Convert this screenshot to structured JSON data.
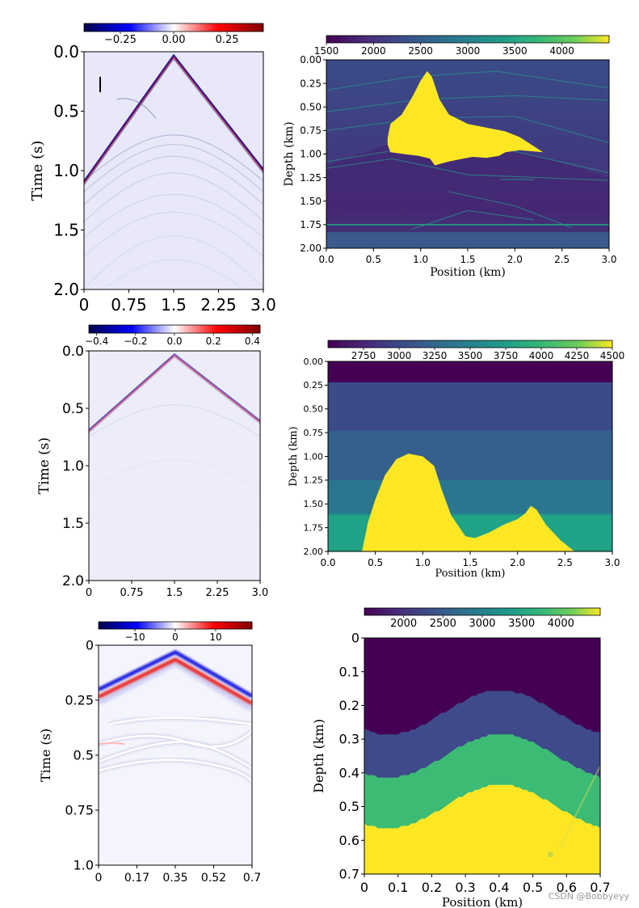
{
  "watermark": "CSDN @Bobbyeyy",
  "colors": {
    "background": "#ffffff",
    "axis": "#000000"
  },
  "chart_data": [
    {
      "id": "p1",
      "type": "heatmap",
      "kind": "seismic",
      "ylabel": "Time (s)",
      "xlabel": "",
      "xticks": [
        "0",
        "0.75",
        "1.5",
        "2.25",
        "3.0"
      ],
      "yticks": [
        "0.0",
        "0.5",
        "1.0",
        "1.5",
        "2.0"
      ],
      "xlim": [
        0,
        3.0
      ],
      "ylim": [
        2.0,
        0.0
      ],
      "apex_x": 1.5,
      "apex_t": 0.04,
      "cbar": {
        "min": -0.42,
        "max": 0.42,
        "ticks": [
          {
            "label": "−0.25",
            "v": -0.25
          },
          {
            "label": "0.00",
            "v": 0.0
          },
          {
            "label": "0.25",
            "v": 0.25
          }
        ]
      }
    },
    {
      "id": "p2",
      "type": "heatmap",
      "kind": "velocity",
      "ylabel": "Depth (km)",
      "xlabel": "Position (km)",
      "xticks": [
        "0.0",
        "0.5",
        "1.0",
        "1.5",
        "2.0",
        "2.5",
        "3.0"
      ],
      "yticks": [
        "0.00",
        "0.25",
        "0.50",
        "0.75",
        "1.00",
        "1.25",
        "1.50",
        "1.75",
        "2.00"
      ],
      "xlim": [
        0,
        3.0
      ],
      "ylim": [
        2.0,
        0.0
      ],
      "cbar": {
        "min": 1500,
        "max": 4500,
        "ticks": [
          {
            "label": "1500",
            "v": 1500
          },
          {
            "label": "2000",
            "v": 2000
          },
          {
            "label": "2500",
            "v": 2500
          },
          {
            "label": "3000",
            "v": 3000
          },
          {
            "label": "3500",
            "v": 3500
          },
          {
            "label": "4000",
            "v": 4000
          }
        ]
      },
      "features": "salt body (yellow) between 0.6-2.3 km position, depth 0.1-1.1 km; reflector at depth 1.75 km"
    },
    {
      "id": "p3",
      "type": "heatmap",
      "kind": "seismic",
      "ylabel": "Time (s)",
      "xlabel": "",
      "xticks": [
        "0",
        "0.75",
        "1.5",
        "2.25",
        "3.0"
      ],
      "yticks": [
        "0.0",
        "0.5",
        "1.0",
        "1.5",
        "2.0"
      ],
      "xlim": [
        0,
        3.0
      ],
      "ylim": [
        2.0,
        0.0
      ],
      "apex_x": 1.5,
      "apex_t": 0.04,
      "cbar": {
        "min": -0.44,
        "max": 0.44,
        "ticks": [
          {
            "label": "−0.4",
            "v": -0.4
          },
          {
            "label": "−0.2",
            "v": -0.2
          },
          {
            "label": "0.0",
            "v": 0.0
          },
          {
            "label": "0.2",
            "v": 0.2
          },
          {
            "label": "0.4",
            "v": 0.4
          }
        ]
      }
    },
    {
      "id": "p4",
      "type": "heatmap",
      "kind": "velocity",
      "ylabel": "Depth (km)",
      "xlabel": "Position (km)",
      "xticks": [
        "0.0",
        "0.5",
        "1.0",
        "1.5",
        "2.0",
        "2.5",
        "3.0"
      ],
      "yticks": [
        "0.00",
        "0.25",
        "0.50",
        "0.75",
        "1.00",
        "1.25",
        "1.50",
        "1.75",
        "2.00"
      ],
      "xlim": [
        0,
        3.0
      ],
      "ylim": [
        2.0,
        0.0
      ],
      "cbar": {
        "min": 2500,
        "max": 4500,
        "ticks": [
          {
            "label": "2750",
            "v": 2750
          },
          {
            "label": "3000",
            "v": 3000
          },
          {
            "label": "3250",
            "v": 3250
          },
          {
            "label": "3500",
            "v": 3500
          },
          {
            "label": "3750",
            "v": 3750
          },
          {
            "label": "4000",
            "v": 4000
          },
          {
            "label": "4250",
            "v": 4250
          },
          {
            "label": "4500",
            "v": 4500
          }
        ]
      },
      "features": "flat layers at depths 0.0, 0.23, 0.73, 1.25, 1.6 km; yellow salt dome peaking near position 0.85 km, depth 0.97 km"
    },
    {
      "id": "p5",
      "type": "heatmap",
      "kind": "seismic",
      "ylabel": "Time (s)",
      "xlabel": "",
      "xticks": [
        "0",
        "0.17",
        "0.35",
        "0.52",
        "0.7"
      ],
      "yticks": [
        "0",
        "0.25",
        "0.5",
        "0.75",
        "1.0"
      ],
      "xlim": [
        0,
        0.7
      ],
      "ylim": [
        1.0,
        0.0
      ],
      "apex_x": 0.35,
      "apex_t": 0.05,
      "cbar": {
        "min": -19,
        "max": 19,
        "ticks": [
          {
            "label": "−10",
            "v": -10
          },
          {
            "label": "0",
            "v": 0
          },
          {
            "label": "10",
            "v": 10
          }
        ]
      }
    },
    {
      "id": "p6",
      "type": "heatmap",
      "kind": "velocity",
      "ylabel": "Depth (km)",
      "xlabel": "Position (km)",
      "xticks": [
        "0",
        "0.1",
        "0.2",
        "0.3",
        "0.4",
        "0.5",
        "0.6",
        "0.7"
      ],
      "yticks": [
        "0",
        "0.1",
        "0.2",
        "0.3",
        "0.4",
        "0.5",
        "0.6",
        "0.7"
      ],
      "xlim": [
        0,
        0.7
      ],
      "ylim": [
        0.7,
        0.0
      ],
      "cbar": {
        "min": 1500,
        "max": 4500,
        "ticks": [
          {
            "label": "2000",
            "v": 2000
          },
          {
            "label": "2500",
            "v": 2500
          },
          {
            "label": "3000",
            "v": 3000
          },
          {
            "label": "3500",
            "v": 3500
          },
          {
            "label": "4000",
            "v": 4000
          }
        ]
      },
      "features": "three sinusoidal layers (purple / slate / green / yellow)"
    }
  ]
}
